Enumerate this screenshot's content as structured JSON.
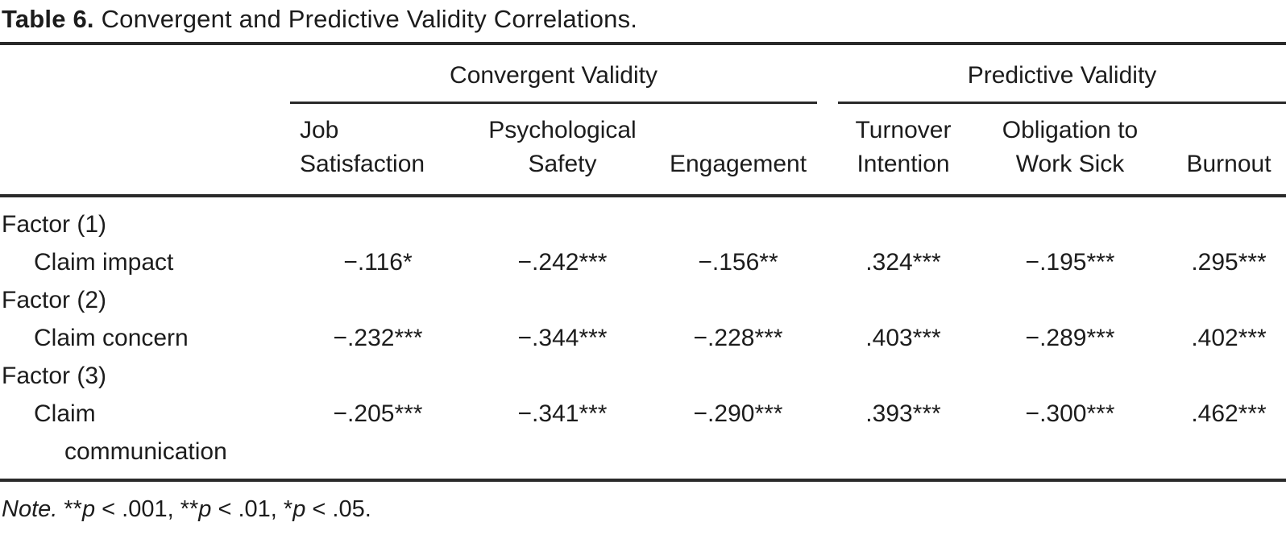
{
  "title": {
    "label": "Table 6.",
    "text": "Convergent and Predictive Validity Correlations."
  },
  "table": {
    "groups": [
      {
        "label": "Convergent Validity"
      },
      {
        "label": "Predictive Validity"
      }
    ],
    "columns": [
      "Job\nSatisfaction",
      "Psychological\nSafety",
      "Engagement",
      "Turnover\nIntention",
      "Obligation to\nWork Sick",
      "Burnout"
    ],
    "rows": [
      {
        "type": "section",
        "label": "Factor (1)"
      },
      {
        "type": "data",
        "label": "Claim impact",
        "values": [
          "−.116*",
          "−.242***",
          "−.156**",
          ".324***",
          "−.195***",
          ".295***"
        ]
      },
      {
        "type": "section",
        "label": "Factor (2)"
      },
      {
        "type": "data",
        "label": "Claim concern",
        "values": [
          "−.232***",
          "−.344***",
          "−.228***",
          ".403***",
          "−.289***",
          ".402***"
        ]
      },
      {
        "type": "section",
        "label": "Factor (3)"
      },
      {
        "type": "data",
        "label": "Claim",
        "label_line2": "communication",
        "values": [
          "−.205***",
          "−.341***",
          "−.290***",
          ".393***",
          "−.300***",
          ".462***"
        ]
      }
    ]
  },
  "note": {
    "label": "Note.",
    "segments": [
      {
        "stars": "**",
        "p": "p",
        "rest": " < .001, "
      },
      {
        "stars": "**",
        "p": "p",
        "rest": " < .01, "
      },
      {
        "stars": "*",
        "p": "p",
        "rest": " < .05."
      }
    ]
  },
  "colors": {
    "text": "#1c1c1c",
    "rule": "#2a2a2a",
    "background": "#ffffff"
  }
}
